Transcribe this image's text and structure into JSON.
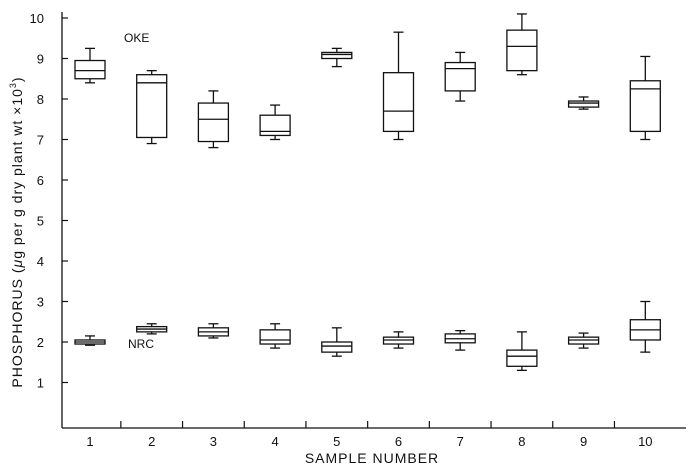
{
  "chart_data": {
    "type": "boxplot",
    "xlabel": "SAMPLE NUMBER",
    "ylabel": "PHOSPHORUS (μg per g dry plant wt ×10³)",
    "ylabel_parts": {
      "prefix": "PHOSPHORUS (",
      "mu": "μ",
      "mid": "g per g dry plant wt ×10",
      "sup": "3",
      "suffix": ")"
    },
    "categories": [
      "1",
      "2",
      "3",
      "4",
      "5",
      "6",
      "7",
      "8",
      "9",
      "10"
    ],
    "y_ticks": [
      "1",
      "2",
      "3",
      "4",
      "5",
      "6",
      "7",
      "8",
      "9",
      "10"
    ],
    "ylim": [
      0,
      10
    ],
    "grid": false,
    "series": [
      {
        "name": "OKE",
        "boxes": [
          {
            "min": 8.4,
            "q1": 8.5,
            "median": 8.7,
            "q3": 8.95,
            "max": 9.25
          },
          {
            "min": 6.9,
            "q1": 7.05,
            "median": 8.4,
            "q3": 8.6,
            "max": 8.7
          },
          {
            "min": 6.8,
            "q1": 6.95,
            "median": 7.5,
            "q3": 7.9,
            "max": 8.2
          },
          {
            "min": 7.0,
            "q1": 7.1,
            "median": 7.2,
            "q3": 7.6,
            "max": 7.85
          },
          {
            "min": 8.8,
            "q1": 9.0,
            "median": 9.1,
            "q3": 9.15,
            "max": 9.25
          },
          {
            "min": 7.0,
            "q1": 7.2,
            "median": 7.7,
            "q3": 8.65,
            "max": 9.65
          },
          {
            "min": 7.95,
            "q1": 8.2,
            "median": 8.75,
            "q3": 8.9,
            "max": 9.15
          },
          {
            "min": 8.6,
            "q1": 8.7,
            "median": 9.3,
            "q3": 9.7,
            "max": 10.1
          },
          {
            "min": 7.75,
            "q1": 7.8,
            "median": 7.9,
            "q3": 7.95,
            "max": 8.05
          },
          {
            "min": 7.0,
            "q1": 7.2,
            "median": 8.25,
            "q3": 8.45,
            "max": 9.05
          }
        ]
      },
      {
        "name": "NRC",
        "boxes": [
          {
            "min": 1.92,
            "q1": 1.95,
            "median": 2.0,
            "q3": 2.05,
            "max": 2.15
          },
          {
            "min": 2.2,
            "q1": 2.25,
            "median": 2.32,
            "q3": 2.38,
            "max": 2.45
          },
          {
            "min": 2.1,
            "q1": 2.15,
            "median": 2.25,
            "q3": 2.35,
            "max": 2.45
          },
          {
            "min": 1.85,
            "q1": 1.95,
            "median": 2.05,
            "q3": 2.3,
            "max": 2.45
          },
          {
            "min": 1.65,
            "q1": 1.75,
            "median": 1.9,
            "q3": 2.0,
            "max": 2.35
          },
          {
            "min": 1.85,
            "q1": 1.95,
            "median": 2.05,
            "q3": 2.12,
            "max": 2.25
          },
          {
            "min": 1.8,
            "q1": 1.98,
            "median": 2.08,
            "q3": 2.2,
            "max": 2.28
          },
          {
            "min": 1.3,
            "q1": 1.4,
            "median": 1.65,
            "q3": 1.8,
            "max": 2.25
          },
          {
            "min": 1.85,
            "q1": 1.95,
            "median": 2.05,
            "q3": 2.12,
            "max": 2.22
          },
          {
            "min": 1.75,
            "q1": 2.05,
            "median": 2.3,
            "q3": 2.55,
            "max": 3.0
          }
        ]
      }
    ]
  }
}
